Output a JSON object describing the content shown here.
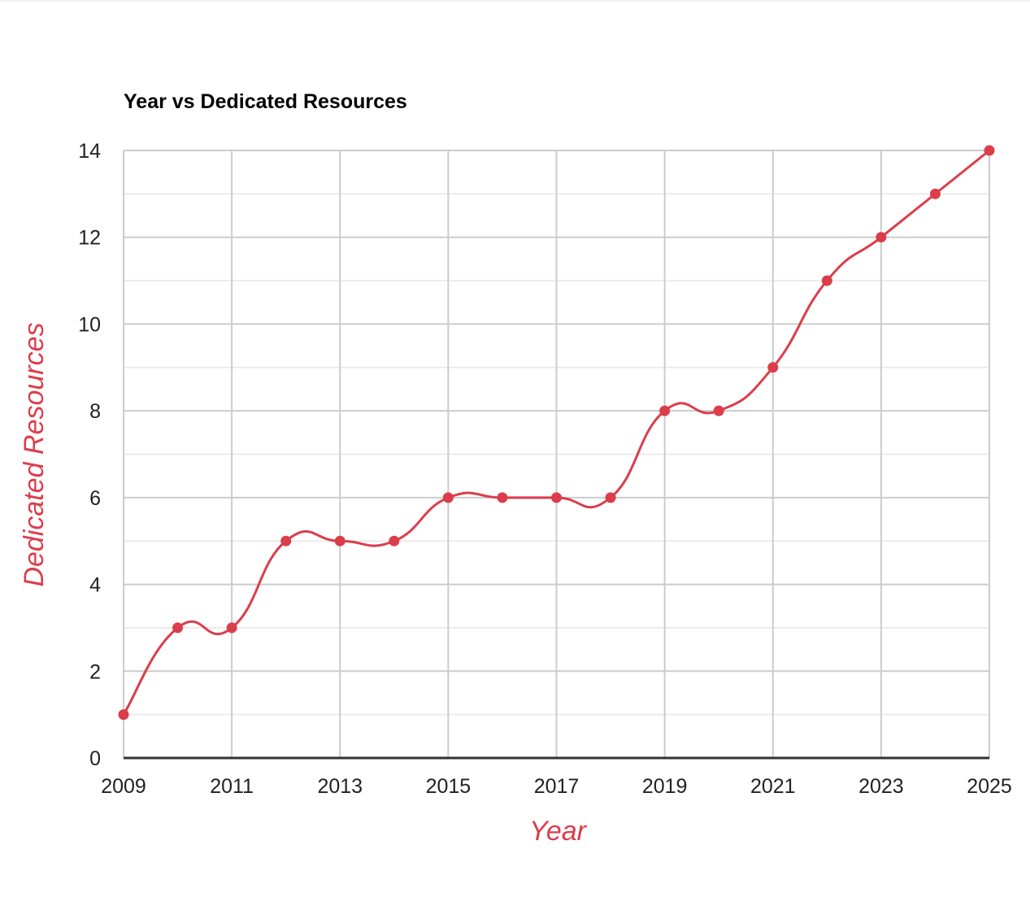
{
  "chart_data": {
    "type": "line",
    "title": "Year vs Dedicated Resources",
    "xlabel": "Year",
    "ylabel": "Dedicated Resources",
    "x": [
      2009,
      2010,
      2011,
      2012,
      2013,
      2014,
      2015,
      2016,
      2017,
      2018,
      2019,
      2020,
      2021,
      2022,
      2023,
      2024,
      2025
    ],
    "series": [
      {
        "values": [
          1,
          3,
          3,
          5,
          5,
          5,
          6,
          6,
          6,
          6,
          8,
          8,
          9,
          11,
          12,
          13,
          14
        ]
      }
    ],
    "xlim": [
      2009,
      2025
    ],
    "ylim": [
      0,
      14
    ],
    "x_ticks": [
      "2009",
      "2011",
      "2013",
      "2015",
      "2017",
      "2019",
      "2021",
      "2023",
      "2025"
    ],
    "y_ticks": [
      "0",
      "2",
      "4",
      "6",
      "8",
      "10",
      "12",
      "14"
    ],
    "grid": true,
    "smooth": true,
    "legend": "none",
    "colors": {
      "series": "#dc3d4b",
      "axis_title": "#dc3d4b",
      "grid_major": "#cccccc",
      "grid_minor": "#ebebeb",
      "baseline": "#333333"
    }
  }
}
